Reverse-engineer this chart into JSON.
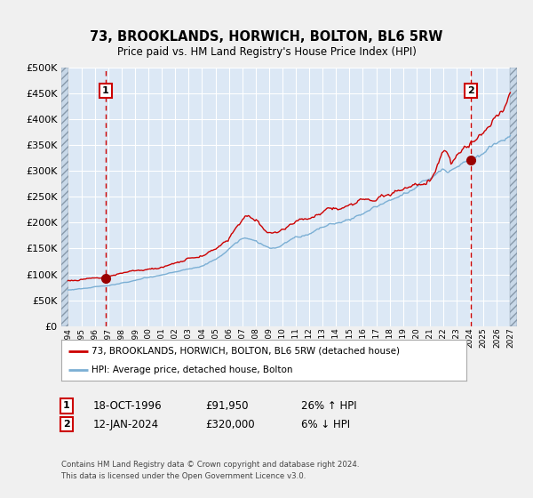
{
  "title": "73, BROOKLANDS, HORWICH, BOLTON, BL6 5RW",
  "subtitle": "Price paid vs. HM Land Registry's House Price Index (HPI)",
  "fig_bg_color": "#f0f0f0",
  "plot_bg_color": "#dce8f5",
  "hatch_bg_color": "#c8d8e8",
  "red_line_color": "#cc0000",
  "blue_line_color": "#7bafd4",
  "marker_color": "#990000",
  "vline_color": "#cc0000",
  "grid_color": "#ffffff",
  "ylim": [
    0,
    500000
  ],
  "yticks": [
    0,
    50000,
    100000,
    150000,
    200000,
    250000,
    300000,
    350000,
    400000,
    450000,
    500000
  ],
  "xmin_year": 1993.5,
  "xmax_year": 2027.5,
  "xticks": [
    1994,
    1995,
    1996,
    1997,
    1998,
    1999,
    2000,
    2001,
    2002,
    2003,
    2004,
    2005,
    2006,
    2007,
    2008,
    2009,
    2010,
    2011,
    2012,
    2013,
    2014,
    2015,
    2016,
    2017,
    2018,
    2019,
    2020,
    2021,
    2022,
    2023,
    2024,
    2025,
    2026,
    2027
  ],
  "sale1_year": 1996.8,
  "sale1_price": 91950,
  "sale1_label": "1",
  "sale2_year": 2024.05,
  "sale2_price": 320000,
  "sale2_label": "2",
  "legend_red": "73, BROOKLANDS, HORWICH, BOLTON, BL6 5RW (detached house)",
  "legend_blue": "HPI: Average price, detached house, Bolton",
  "note1_label": "1",
  "note1_date": "18-OCT-1996",
  "note1_price": "£91,950",
  "note1_hpi": "26% ↑ HPI",
  "note2_label": "2",
  "note2_date": "12-JAN-2024",
  "note2_price": "£320,000",
  "note2_hpi": "6% ↓ HPI",
  "copyright": "Contains HM Land Registry data © Crown copyright and database right 2024.\nThis data is licensed under the Open Government Licence v3.0."
}
